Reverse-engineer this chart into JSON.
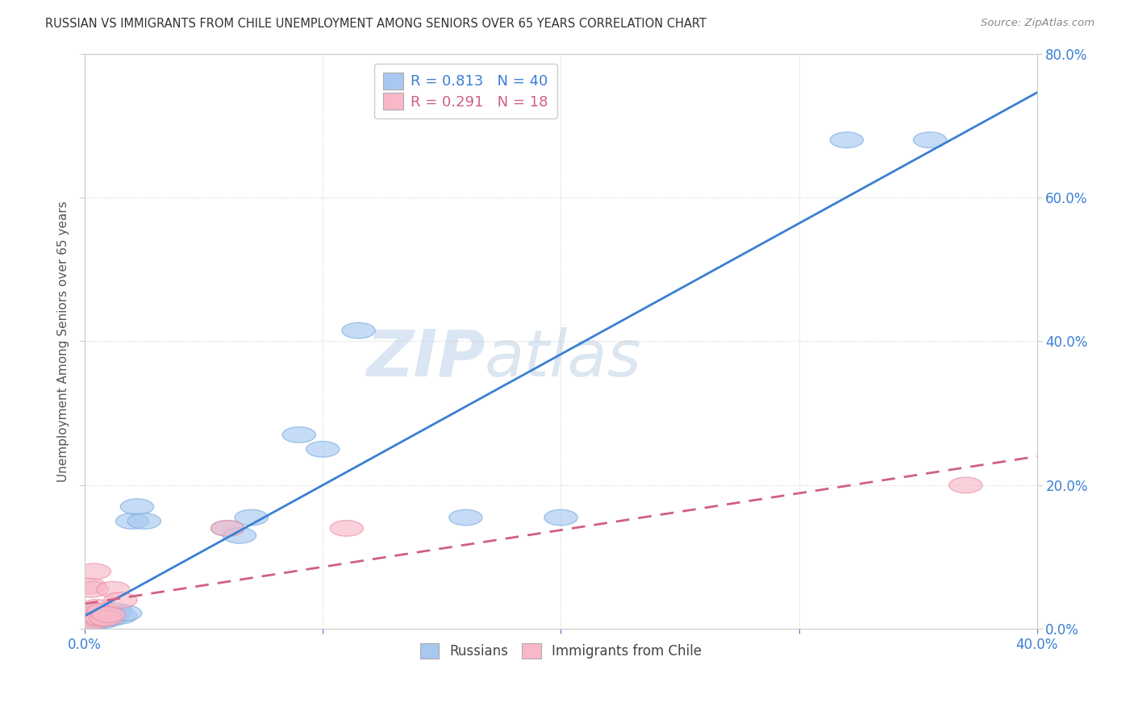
{
  "title": "RUSSIAN VS IMMIGRANTS FROM CHILE UNEMPLOYMENT AMONG SENIORS OVER 65 YEARS CORRELATION CHART",
  "source": "Source: ZipAtlas.com",
  "ylabel": "Unemployment Among Seniors over 65 years",
  "xlim": [
    0.0,
    0.4
  ],
  "ylim": [
    0.0,
    0.8
  ],
  "watermark_zip": "ZIP",
  "watermark_atlas": "atlas",
  "legend_russian_R": "0.813",
  "legend_russian_N": "40",
  "legend_chile_R": "0.291",
  "legend_chile_N": "18",
  "russian_color": "#a8c8f0",
  "russian_edge_color": "#7aaee0",
  "chile_color": "#f8b8c8",
  "chile_edge_color": "#e890a8",
  "russian_line_color": "#3a7fd5",
  "chile_line_color": "#d06080",
  "background_color": "#ffffff",
  "grid_color": "#cccccc",
  "russians_x": [
    0.001,
    0.002,
    0.002,
    0.003,
    0.003,
    0.003,
    0.004,
    0.004,
    0.004,
    0.005,
    0.005,
    0.005,
    0.006,
    0.006,
    0.006,
    0.007,
    0.007,
    0.008,
    0.008,
    0.009,
    0.01,
    0.01,
    0.011,
    0.012,
    0.013,
    0.015,
    0.017,
    0.02,
    0.022,
    0.025,
    0.06,
    0.065,
    0.07,
    0.09,
    0.1,
    0.115,
    0.16,
    0.2,
    0.32,
    0.355
  ],
  "russians_y": [
    0.015,
    0.012,
    0.018,
    0.01,
    0.016,
    0.02,
    0.013,
    0.018,
    0.022,
    0.015,
    0.02,
    0.025,
    0.012,
    0.018,
    0.022,
    0.015,
    0.02,
    0.012,
    0.018,
    0.015,
    0.018,
    0.022,
    0.015,
    0.02,
    0.025,
    0.018,
    0.022,
    0.15,
    0.17,
    0.15,
    0.14,
    0.13,
    0.155,
    0.27,
    0.25,
    0.415,
    0.155,
    0.155,
    0.68,
    0.68
  ],
  "chile_x": [
    0.001,
    0.002,
    0.002,
    0.003,
    0.003,
    0.004,
    0.004,
    0.005,
    0.006,
    0.007,
    0.008,
    0.009,
    0.01,
    0.012,
    0.015,
    0.06,
    0.11,
    0.37
  ],
  "chile_y": [
    0.01,
    0.025,
    0.06,
    0.055,
    0.01,
    0.02,
    0.08,
    0.03,
    0.015,
    0.015,
    0.025,
    0.015,
    0.02,
    0.055,
    0.04,
    0.14,
    0.14,
    0.2
  ],
  "right_yticks": [
    0.0,
    0.2,
    0.4,
    0.6,
    0.8
  ],
  "right_ytick_labels": [
    "0.0%",
    "20.0%",
    "40.0%",
    "60.0%",
    "80.0%"
  ],
  "xtick_positions": [
    0.0,
    0.1,
    0.2,
    0.3,
    0.4
  ],
  "xtick_show": [
    0.0,
    0.4
  ],
  "xtick_labels_show": [
    "0.0%",
    "40.0%"
  ]
}
